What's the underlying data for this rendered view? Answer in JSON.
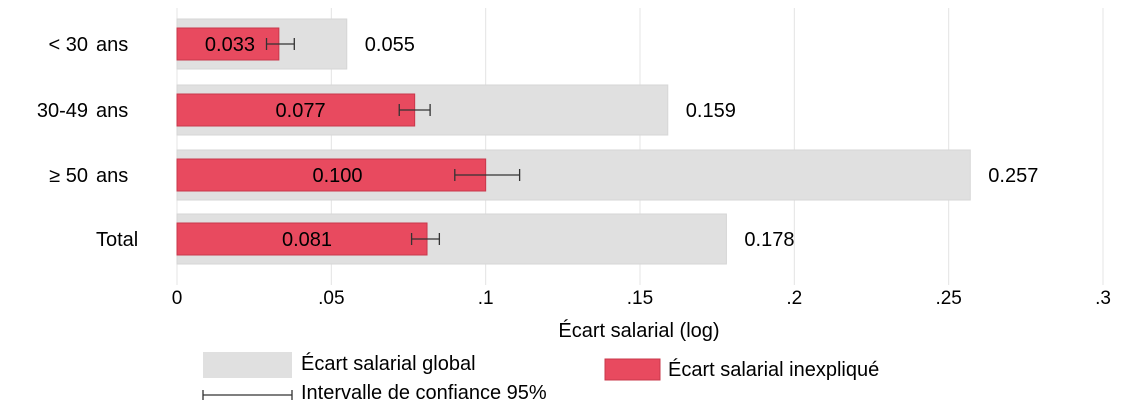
{
  "chart_data": {
    "type": "bar",
    "orientation": "horizontal",
    "categories": [
      {
        "left": "< 30",
        "right": "ans"
      },
      {
        "left": "30-49",
        "right": "ans"
      },
      {
        "left": "≥ 50",
        "right": "ans"
      },
      {
        "left": "",
        "right": "Total"
      }
    ],
    "series": [
      {
        "name": "Écart salarial global",
        "color": "#e0e0e0",
        "values": [
          0.055,
          0.159,
          0.257,
          0.178
        ],
        "labels": [
          "0.055",
          "0.159",
          "0.257",
          "0.178"
        ]
      },
      {
        "name": "Écart salarial inexpliqué",
        "color": "#e84a5f",
        "values": [
          0.033,
          0.077,
          0.1,
          0.081
        ],
        "labels": [
          "0.033",
          "0.077",
          "0.100",
          "0.081"
        ],
        "ci_low": [
          0.029,
          0.072,
          0.09,
          0.076
        ],
        "ci_high": [
          0.038,
          0.082,
          0.111,
          0.085
        ]
      }
    ],
    "xlim": [
      0,
      0.3
    ],
    "xticks": [
      0,
      0.05,
      0.1,
      0.15,
      0.2,
      0.25,
      0.3
    ],
    "xtick_labels": [
      "0",
      ".05",
      ".1",
      ".15",
      ".2",
      ".25",
      ".3"
    ],
    "xlabel": "Écart salarial (log)",
    "ci_legend": "Intervalle de confiance 95%",
    "grid": true,
    "legend_position": "bottom"
  }
}
